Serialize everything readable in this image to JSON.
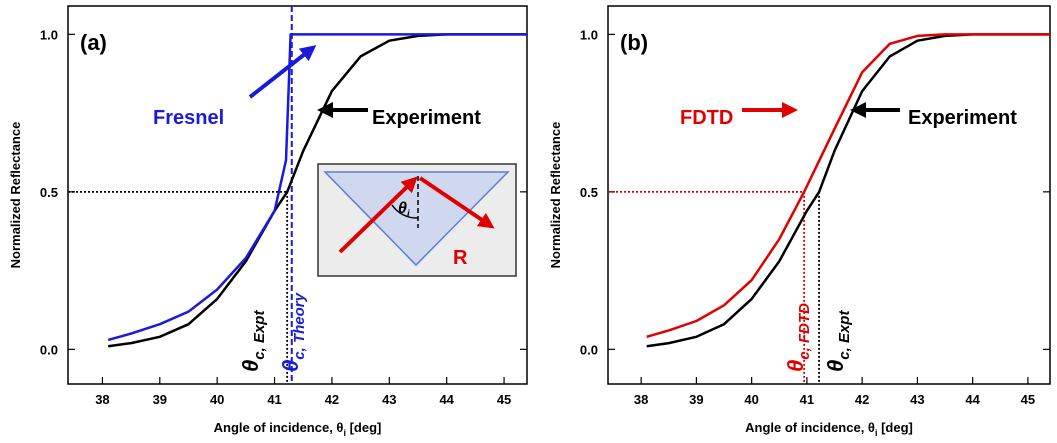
{
  "chart_data": [
    {
      "type": "line",
      "panel_label": "(a)",
      "x_label": "Angle of incidence, θ",
      "x_label_sub": "i",
      "x_label_suffix": " [deg]",
      "y_label": "Normalized Reflectance",
      "xlim": [
        37.4,
        45.4
      ],
      "ylim": [
        -0.11,
        1.09
      ],
      "xticks": [
        38,
        39,
        40,
        41,
        42,
        43,
        44,
        45
      ],
      "yticks": [
        {
          "value": 0,
          "label": "0.0"
        },
        0.5,
        {
          "value": 1,
          "label": "1.0"
        }
      ],
      "series": [
        {
          "name": "Experiment",
          "color": "#000000",
          "x": [
            38.1,
            38.5,
            39,
            39.5,
            40,
            40.5,
            41,
            41.22,
            41.5,
            42,
            42.5,
            43,
            43.5,
            44,
            45.4
          ],
          "values": [
            0.01,
            0.02,
            0.04,
            0.08,
            0.16,
            0.28,
            0.44,
            0.5,
            0.63,
            0.82,
            0.93,
            0.98,
            0.995,
            1.0,
            1.0
          ]
        },
        {
          "name": "Fresnel",
          "color": "#1a1adb",
          "x": [
            38.1,
            38.5,
            39,
            39.5,
            40,
            40.5,
            41,
            41.2,
            41.25,
            41.28,
            45.4
          ],
          "values": [
            0.03,
            0.05,
            0.08,
            0.12,
            0.19,
            0.29,
            0.44,
            0.6,
            0.85,
            1.0,
            1.0
          ]
        }
      ],
      "reference_lines": [
        {
          "axis": "y",
          "value": 0.5,
          "color": "#000000",
          "style": "dotted"
        },
        {
          "axis": "x",
          "value": 41.22,
          "color": "#000000",
          "style": "dotted"
        },
        {
          "axis": "x",
          "value": 41.3,
          "color": "#1a1adb",
          "style": "dashed"
        }
      ],
      "annotations": [
        {
          "text": "Fresnel",
          "color": "#1a1adb"
        },
        {
          "text": "Experiment",
          "color": "#000000"
        }
      ],
      "theta_labels": [
        {
          "symbol": "θ",
          "subscript": "c, Expt",
          "color": "#000000"
        },
        {
          "symbol": "θ",
          "subscript": "c, Theory",
          "color": "#1a1adb"
        }
      ],
      "inset": {
        "angle_symbol": "θ",
        "angle_sub": "i",
        "ray_label": "R"
      }
    },
    {
      "type": "line",
      "panel_label": "(b)",
      "x_label": "Angle of incidence, θ",
      "x_label_sub": "i",
      "x_label_suffix": " [deg]",
      "y_label": "Normalized Reflectance",
      "xlim": [
        37.4,
        45.4
      ],
      "ylim": [
        -0.11,
        1.09
      ],
      "xticks": [
        38,
        39,
        40,
        41,
        42,
        43,
        44,
        45
      ],
      "yticks": [
        {
          "value": 0,
          "label": "0.0"
        },
        0.5,
        {
          "value": 1,
          "label": "1.0"
        }
      ],
      "series": [
        {
          "name": "Experiment",
          "color": "#000000",
          "x": [
            38.1,
            38.5,
            39,
            39.5,
            40,
            40.5,
            41,
            41.22,
            41.5,
            42,
            42.5,
            43,
            43.5,
            44,
            45.4
          ],
          "values": [
            0.01,
            0.02,
            0.04,
            0.08,
            0.16,
            0.28,
            0.44,
            0.5,
            0.63,
            0.82,
            0.93,
            0.98,
            0.995,
            1.0,
            1.0
          ]
        },
        {
          "name": "FDTD",
          "color": "#e00000",
          "x": [
            38.1,
            38.5,
            39,
            39.5,
            40,
            40.5,
            40.95,
            41.5,
            42,
            42.5,
            43,
            43.5,
            45.4
          ],
          "values": [
            0.04,
            0.06,
            0.09,
            0.14,
            0.22,
            0.35,
            0.5,
            0.7,
            0.88,
            0.97,
            0.995,
            1.0,
            1.0
          ]
        }
      ],
      "reference_lines": [
        {
          "axis": "y",
          "value": 0.5,
          "color": "#e00000",
          "style": "dotted"
        },
        {
          "axis": "x",
          "value": 40.95,
          "color": "#e00000",
          "style": "dotted"
        },
        {
          "axis": "x",
          "value": 41.22,
          "color": "#000000",
          "style": "dotted"
        }
      ],
      "annotations": [
        {
          "text": "FDTD",
          "color": "#e00000"
        },
        {
          "text": "Experiment",
          "color": "#000000"
        }
      ],
      "theta_labels": [
        {
          "symbol": "θ",
          "subscript": "c, FDTD",
          "color": "#e00000"
        },
        {
          "symbol": "θ",
          "subscript": "c, Expt",
          "color": "#000000"
        }
      ]
    }
  ]
}
